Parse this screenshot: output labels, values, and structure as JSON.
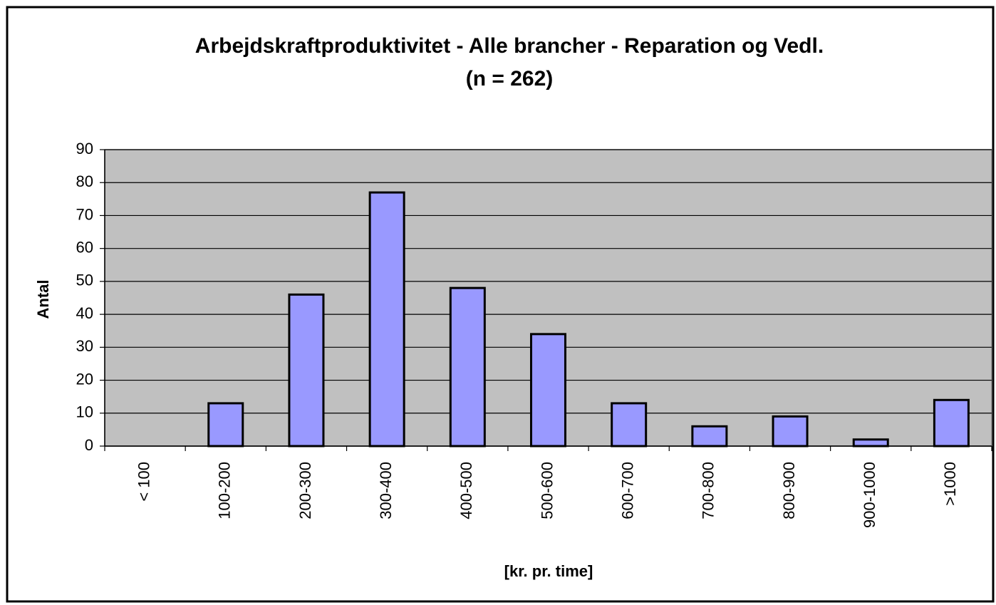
{
  "chart_data": {
    "type": "bar",
    "title": "Arbejdskraftproduktivitet - Alle brancher - Reparation og Vedl.",
    "subtitle": "(n = 262)",
    "categories": [
      "< 100",
      "100-200",
      "200-300",
      "300-400",
      "400-500",
      "500-600",
      "600-700",
      "700-800",
      "800-900",
      "900-1000",
      ">1000"
    ],
    "values": [
      0,
      13,
      46,
      77,
      48,
      34,
      13,
      6,
      9,
      2,
      14
    ],
    "color": "#9999ff",
    "y_label": "Antal",
    "x_label": "[kr. pr. time]",
    "ylim": [
      0,
      90
    ],
    "yticks": [
      0,
      10,
      20,
      30,
      40,
      50,
      60,
      70,
      80,
      90
    ],
    "grid": true
  }
}
